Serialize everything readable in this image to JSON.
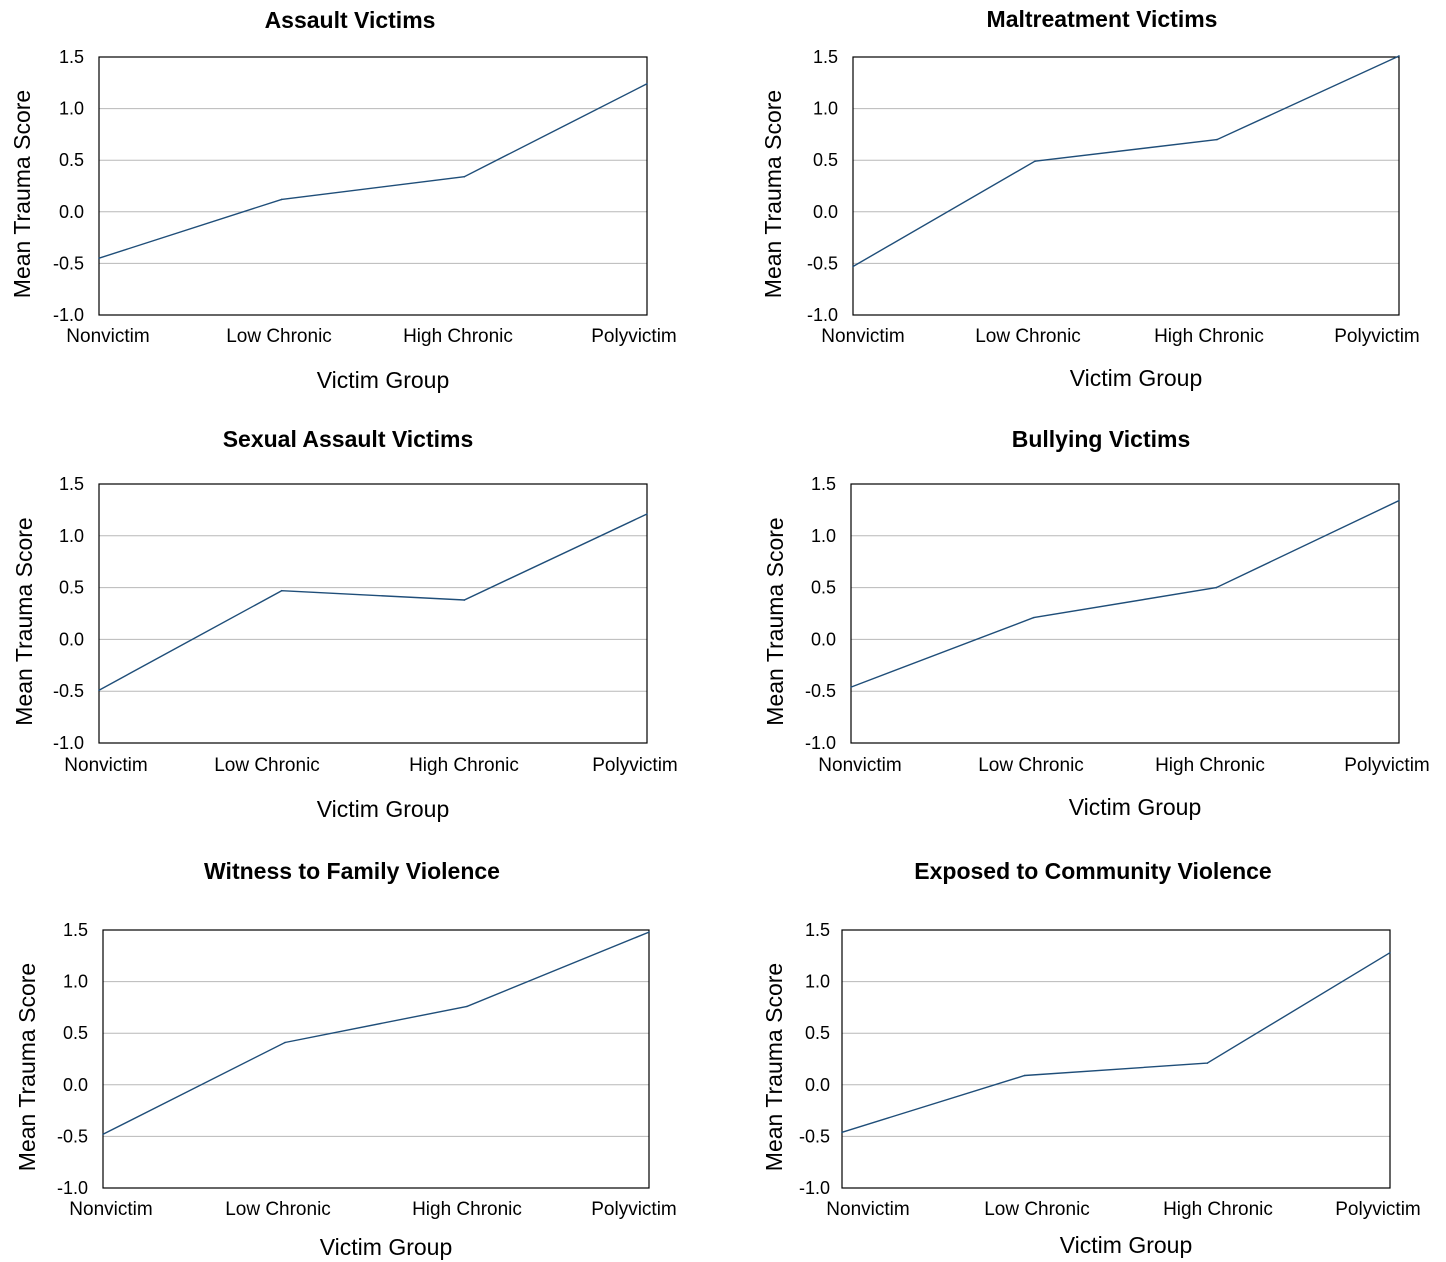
{
  "chart_data": [
    {
      "type": "line",
      "title": "Assault Victims",
      "xlabel": "Victim Group",
      "ylabel": "Mean Trauma Score",
      "categories": [
        "Nonvictim",
        "Low Chronic",
        "High Chronic",
        "Polyvictim"
      ],
      "values": [
        -0.45,
        0.12,
        0.34,
        1.24
      ],
      "yticks": [
        "1.5",
        "1.0",
        "0.5",
        "0.0",
        "-0.5",
        "-1.0"
      ],
      "ylim": [
        -1.0,
        1.5
      ],
      "grid": true,
      "color": "#1f4e79"
    },
    {
      "type": "line",
      "title": "Maltreatment Victims",
      "xlabel": "Victim Group",
      "ylabel": "Mean Trauma Score",
      "categories": [
        "Nonvictim",
        "Low Chronic",
        "High Chronic",
        "Polyvictim"
      ],
      "values": [
        -0.53,
        0.49,
        0.7,
        1.51
      ],
      "yticks": [
        "1.5",
        "1.0",
        "0.5",
        "0.0",
        "-0.5",
        "-1.0"
      ],
      "ylim": [
        -1.0,
        1.5
      ],
      "grid": true,
      "color": "#1f4e79"
    },
    {
      "type": "line",
      "title": "Sexual Assault Victims",
      "xlabel": "Victim Group",
      "ylabel": "Mean Trauma Score",
      "categories": [
        "Nonvictim",
        "Low Chronic",
        "High Chronic",
        "Polyvictim"
      ],
      "values": [
        -0.49,
        0.47,
        0.38,
        1.21
      ],
      "yticks": [
        "1.5",
        "1.0",
        "0.5",
        "0.0",
        "-0.5",
        "-1.0"
      ],
      "ylim": [
        -1.0,
        1.5
      ],
      "grid": true,
      "color": "#1f4e79"
    },
    {
      "type": "line",
      "title": "Bullying Victims",
      "xlabel": "Victim Group",
      "ylabel": "Mean Trauma Score",
      "categories": [
        "Nonvictim",
        "Low Chronic",
        "High Chronic",
        "Polyvictim"
      ],
      "values": [
        -0.46,
        0.21,
        0.5,
        1.34
      ],
      "yticks": [
        "1.5",
        "1.0",
        "0.5",
        "0.0",
        "-0.5",
        "-1.0"
      ],
      "ylim": [
        -1.0,
        1.5
      ],
      "grid": true,
      "color": "#1f4e79"
    },
    {
      "type": "line",
      "title": "Witness to Family Violence",
      "xlabel": "Victim Group",
      "ylabel": "Mean Trauma Score",
      "categories": [
        "Nonvictim",
        "Low Chronic",
        "High Chronic",
        "Polyvictim"
      ],
      "values": [
        -0.48,
        0.41,
        0.76,
        1.48
      ],
      "yticks": [
        "1.5",
        "1.0",
        "0.5",
        "0.0",
        "-0.5",
        "-1.0"
      ],
      "ylim": [
        -1.0,
        1.5
      ],
      "grid": true,
      "color": "#1f4e79"
    },
    {
      "type": "line",
      "title": "Exposed to Community Violence",
      "xlabel": "Victim Group",
      "ylabel": "Mean Trauma Score",
      "categories": [
        "Nonvictim",
        "Low Chronic",
        "High Chronic",
        "Polyvictim"
      ],
      "values": [
        -0.46,
        0.09,
        0.21,
        1.28
      ],
      "yticks": [
        "1.5",
        "1.0",
        "0.5",
        "0.0",
        "-0.5",
        "-1.0"
      ],
      "ylim": [
        -1.0,
        1.5
      ],
      "grid": true,
      "color": "#1f4e79"
    }
  ]
}
